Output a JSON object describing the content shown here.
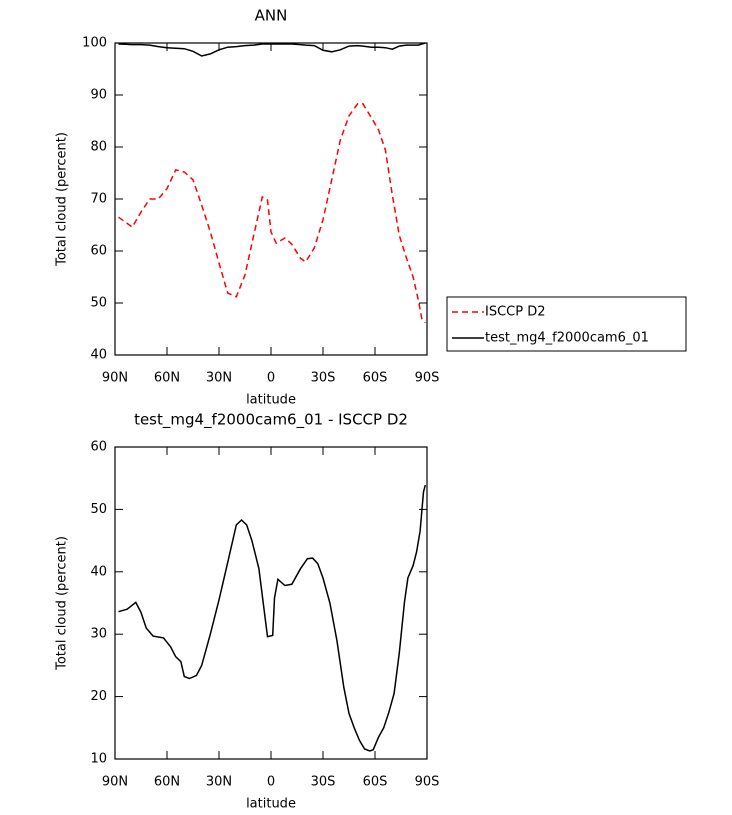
{
  "chart_data": [
    {
      "type": "line",
      "title": "ANN",
      "x_label": "latitude",
      "y_label": "Total cloud (percent)",
      "x": [
        88,
        80,
        75,
        70,
        65,
        60,
        55,
        50,
        45,
        40,
        35,
        30,
        25,
        20,
        15,
        10,
        5,
        2,
        0,
        -3,
        -8,
        -12,
        -17,
        -20,
        -25,
        -30,
        -35,
        -40,
        -45,
        -50,
        -53,
        -58,
        -62,
        -66,
        -70,
        -74,
        -78,
        -82,
        -85,
        -87,
        -89
      ],
      "series": [
        {
          "name": "ISCCP D2",
          "color": "#ff0000",
          "style": "dashed",
          "values": [
            66.5,
            64.6,
            67.5,
            70,
            70,
            72,
            75.6,
            75.2,
            73.7,
            68.8,
            63.7,
            57.7,
            51.9,
            51.2,
            55.4,
            63,
            70.4,
            69.8,
            63.7,
            61.5,
            62.5,
            61.3,
            58.6,
            57.9,
            60.6,
            66,
            73.7,
            81.3,
            86,
            88.3,
            88.3,
            85.6,
            83.3,
            79.4,
            70.8,
            63,
            58.8,
            55,
            50.6,
            47,
            46.2
          ]
        },
        {
          "name": "test_mg4_f2000cam6_01",
          "color": "#000000",
          "style": "solid",
          "values": [
            99.8,
            99.7,
            99.7,
            99.6,
            99.3,
            99.1,
            99,
            98.9,
            98.4,
            97.5,
            97.9,
            98.7,
            99.2,
            99.3,
            99.5,
            99.6,
            99.8,
            99.8,
            99.8,
            99.8,
            99.8,
            99.8,
            99.7,
            99.6,
            99.5,
            98.6,
            98.3,
            98.7,
            99.4,
            99.5,
            99.4,
            99.2,
            99.2,
            99.1,
            98.8,
            99.4,
            99.6,
            99.6,
            99.6,
            99.8,
            100
          ]
        }
      ],
      "xlim": [
        90,
        -90
      ],
      "xticks": [
        {
          "value": 90,
          "label": "90N"
        },
        {
          "value": 60,
          "label": "60N"
        },
        {
          "value": 30,
          "label": "30N"
        },
        0,
        {
          "value": -30,
          "label": "30S"
        },
        {
          "value": -60,
          "label": "60S"
        },
        {
          "value": -90,
          "label": "90S"
        }
      ],
      "ylim": [
        40,
        100
      ],
      "yticks": [
        40,
        50,
        60,
        70,
        80,
        90,
        100
      ],
      "legend": "right"
    },
    {
      "type": "line",
      "title": "test_mg4_f2000cam6_01 - ISCCP D2",
      "x_label": "latitude",
      "y_label": "Total cloud (percent)",
      "x": [
        88,
        83,
        78,
        75,
        72,
        68,
        62,
        58,
        55,
        52,
        50,
        47,
        43,
        40,
        35,
        30,
        25,
        20,
        17,
        14,
        11,
        7,
        2,
        -1,
        -2,
        -4,
        -8,
        -12,
        -17,
        -21,
        -24,
        -27,
        -30,
        -34,
        -38,
        -42,
        -45,
        -48,
        -51,
        -54,
        -57,
        -59,
        -62,
        -65,
        -68,
        -71,
        -74,
        -77,
        -79,
        -82,
        -84,
        -86,
        -87,
        -88,
        -89
      ],
      "series": [
        {
          "color": "#000000",
          "style": "solid",
          "values": [
            33.6,
            34,
            35.1,
            33.5,
            31,
            29.7,
            29.4,
            28,
            26.4,
            25.6,
            23.2,
            22.9,
            23.4,
            25,
            30,
            35.5,
            41.5,
            47.5,
            48.3,
            47.5,
            45,
            40.5,
            29.6,
            29.8,
            35.8,
            38.8,
            37.8,
            38,
            40.5,
            42.1,
            42.2,
            41.3,
            39,
            35,
            29,
            21.5,
            17.3,
            15,
            13,
            11.6,
            11.3,
            11.5,
            13.5,
            15,
            17.5,
            20.5,
            27,
            35.2,
            39,
            41,
            43.2,
            46.5,
            49.7,
            52.8,
            53.9
          ]
        }
      ],
      "xlim": [
        90,
        -90
      ],
      "xticks": [
        {
          "value": 90,
          "label": "90N"
        },
        {
          "value": 60,
          "label": "60N"
        },
        {
          "value": 30,
          "label": "30N"
        },
        0,
        {
          "value": -30,
          "label": "30S"
        },
        {
          "value": -60,
          "label": "60S"
        },
        {
          "value": -90,
          "label": "90S"
        }
      ],
      "ylim": [
        10,
        60
      ],
      "yticks": [
        10,
        20,
        30,
        40,
        50,
        60
      ]
    }
  ]
}
